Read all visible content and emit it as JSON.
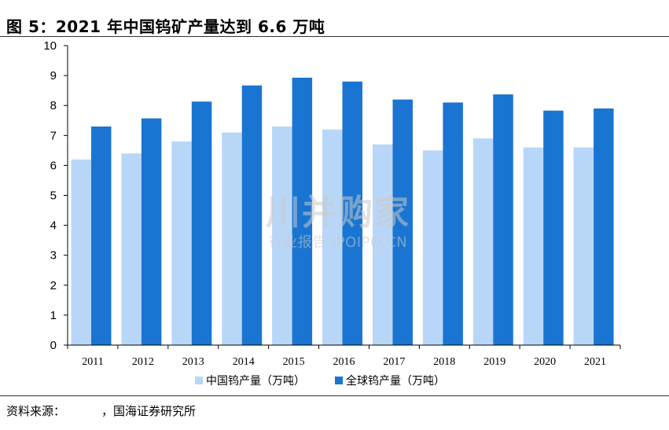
{
  "title": "图 5：2021 年中国钨矿产量达到 6.6 万吨",
  "source": {
    "label": "资料来源：",
    "text": "，国海证券研究所"
  },
  "watermark": {
    "logo": "川并购家",
    "sub": "行业报告 IPOIPO.CN"
  },
  "colors": {
    "china": "#b8d7f8",
    "global": "#1a75d2",
    "axis": "#000000"
  },
  "chart_data": {
    "type": "bar",
    "categories": [
      "2011",
      "2012",
      "2013",
      "2014",
      "2015",
      "2016",
      "2017",
      "2018",
      "2019",
      "2020",
      "2021"
    ],
    "series": [
      {
        "name": "中国钨产量（万吨）",
        "values": [
          6.2,
          6.4,
          6.8,
          7.1,
          7.3,
          7.2,
          6.7,
          6.5,
          6.9,
          6.6,
          6.6
        ]
      },
      {
        "name": "全球钨产量（万吨）",
        "values": [
          7.3,
          7.57,
          8.13,
          8.67,
          8.93,
          8.8,
          8.2,
          8.1,
          8.37,
          7.83,
          7.9
        ]
      }
    ],
    "yticks": [
      "0",
      "1",
      "2",
      "3",
      "4",
      "5",
      "6",
      "7",
      "8",
      "9",
      "10"
    ],
    "ylim": [
      0,
      10
    ],
    "grid": false,
    "legend_position": "bottom"
  }
}
